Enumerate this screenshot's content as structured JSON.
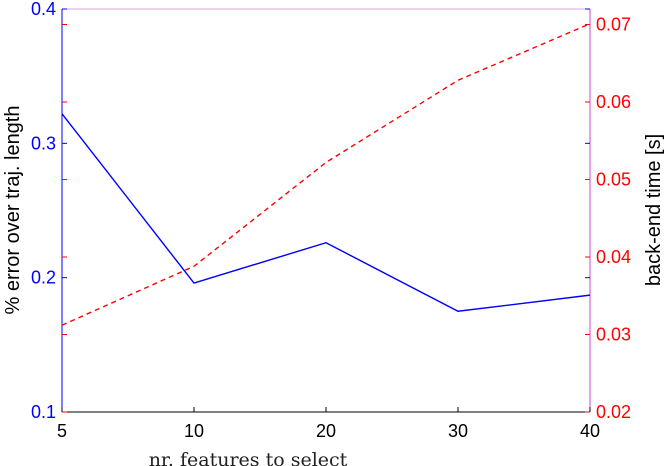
{
  "chart_data": {
    "type": "line",
    "categories": [
      "5",
      "10",
      "20",
      "30",
      "40"
    ],
    "xlabel": "nr. features to select",
    "ylabel_left": "% error over traj. length",
    "ylabel_right": "back-end time [s]",
    "ylim_left": [
      0.1,
      0.4
    ],
    "ylim_right": [
      0.02,
      0.072
    ],
    "yticks_left": [
      "0.1",
      "0.2",
      "0.3",
      "0.4"
    ],
    "yticks_right": [
      "0.02",
      "0.03",
      "0.04",
      "0.05",
      "0.06",
      "0.07"
    ],
    "grid": false,
    "series": [
      {
        "axis": "left",
        "style": "solid",
        "color": "#0000ff",
        "values": [
          0.322,
          0.196,
          0.226,
          0.175,
          0.187
        ]
      },
      {
        "axis": "right",
        "style": "dashed",
        "color": "#ff0000",
        "values": [
          0.0312,
          0.0388,
          0.0522,
          0.0628,
          0.0701
        ]
      }
    ],
    "colors": {
      "left_axis": "#0000ff",
      "right_axis": "#ff0000",
      "right_spine": "#cc44cc"
    }
  }
}
